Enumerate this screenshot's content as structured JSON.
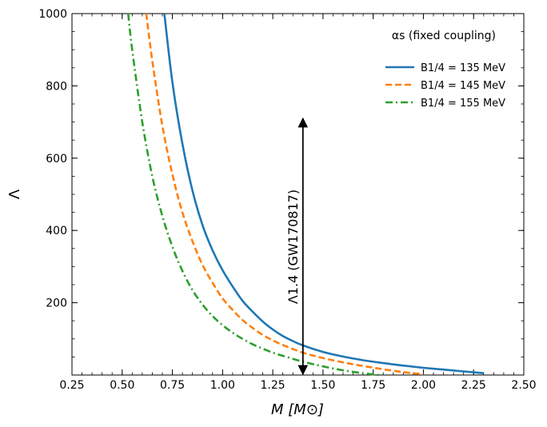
{
  "chart_data": {
    "type": "line",
    "title": "",
    "xlabel": "M [M⊙]",
    "ylabel": "Λ",
    "xlim": [
      0.25,
      2.5
    ],
    "ylim": [
      0,
      1000
    ],
    "xticks": [
      0.25,
      0.5,
      0.75,
      1.0,
      1.25,
      1.5,
      1.75,
      2.0,
      2.25,
      2.5
    ],
    "xtick_labels": [
      "0.25",
      "0.50",
      "0.75",
      "1.00",
      "1.25",
      "1.50",
      "1.75",
      "2.00",
      "2.25",
      "2.50"
    ],
    "yticks": [
      200,
      400,
      600,
      800,
      1000
    ],
    "ytick_labels": [
      "200",
      "400",
      "600",
      "800",
      "1000"
    ],
    "grid": false,
    "legend": {
      "title": "αs (fixed coupling)",
      "placement": "top-right"
    },
    "series": [
      {
        "name": "B1/4 = 135 MeV",
        "color": "#1f77b4",
        "style": "solid",
        "x": [
          0.71,
          0.75,
          0.8,
          0.85,
          0.9,
          0.95,
          1.0,
          1.05,
          1.1,
          1.15,
          1.2,
          1.25,
          1.3,
          1.35,
          1.4,
          1.5,
          1.6,
          1.7,
          1.8,
          1.9,
          2.0,
          2.1,
          2.2,
          2.3
        ],
        "y": [
          1000,
          810,
          640,
          510,
          415,
          345,
          290,
          245,
          205,
          175,
          148,
          126,
          108,
          94,
          82,
          64,
          51,
          41,
          33,
          26,
          20,
          15,
          10,
          5
        ]
      },
      {
        "name": "B1/4 = 145 MeV",
        "color": "#ff7f0e",
        "style": "dashed",
        "x": [
          0.62,
          0.65,
          0.7,
          0.75,
          0.8,
          0.85,
          0.9,
          0.95,
          1.0,
          1.05,
          1.1,
          1.15,
          1.2,
          1.25,
          1.3,
          1.4,
          1.5,
          1.6,
          1.7,
          1.8,
          1.9,
          2.0
        ],
        "y": [
          1000,
          870,
          690,
          555,
          450,
          370,
          305,
          255,
          212,
          180,
          152,
          130,
          111,
          96,
          83,
          62,
          47,
          35,
          25,
          16,
          8,
          2
        ]
      },
      {
        "name": "B1/4 = 155 MeV",
        "color": "#2ca02c",
        "style": "dashdot",
        "x": [
          0.53,
          0.55,
          0.6,
          0.65,
          0.7,
          0.75,
          0.8,
          0.85,
          0.9,
          0.95,
          1.0,
          1.05,
          1.1,
          1.15,
          1.2,
          1.25,
          1.3,
          1.4,
          1.5,
          1.6,
          1.7,
          1.78
        ],
        "y": [
          1000,
          900,
          700,
          550,
          440,
          355,
          288,
          235,
          195,
          163,
          138,
          117,
          100,
          85,
          73,
          62,
          53,
          37,
          24,
          13,
          5,
          0
        ]
      }
    ],
    "annotation": {
      "label": "Λ1.4 (GW170817)",
      "x": 1.4,
      "y_from": 0,
      "y_to": 710
    }
  }
}
